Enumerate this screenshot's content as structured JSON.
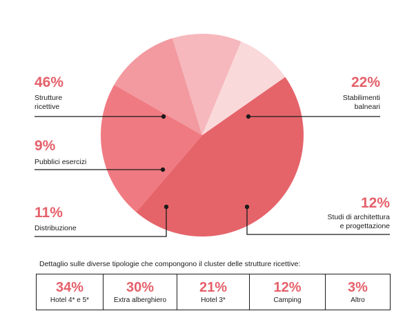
{
  "chart_data": {
    "type": "pie",
    "slices": [
      {
        "label": "Strutture\nricettive",
        "percent": "46%",
        "value": 46,
        "color": "#e5646a"
      },
      {
        "label": "Stabilimenti\nbalneari",
        "percent": "22%",
        "value": 22,
        "color": "#f07a82"
      },
      {
        "label": "Studi di architettura\ne progettazione",
        "percent": "12%",
        "value": 12,
        "color": "#f29aa0"
      },
      {
        "label": "Distribuzione",
        "percent": "11%",
        "value": 11,
        "color": "#f6b8bc"
      },
      {
        "label": "Pubblici esercizi",
        "percent": "9%",
        "value": 9,
        "color": "#fad9db"
      }
    ]
  },
  "detail": {
    "title": "Dettaglio sulle diverse tipologie che compongono il cluster delle strutture ricettive:",
    "items": [
      {
        "percent": "34%",
        "label": "Hotel 4* e 5*"
      },
      {
        "percent": "30%",
        "label": "Extra alberghiero"
      },
      {
        "percent": "21%",
        "label": "Hotel 3*"
      },
      {
        "percent": "12%",
        "label": "Camping"
      },
      {
        "percent": "3%",
        "label": "Altro"
      }
    ]
  }
}
